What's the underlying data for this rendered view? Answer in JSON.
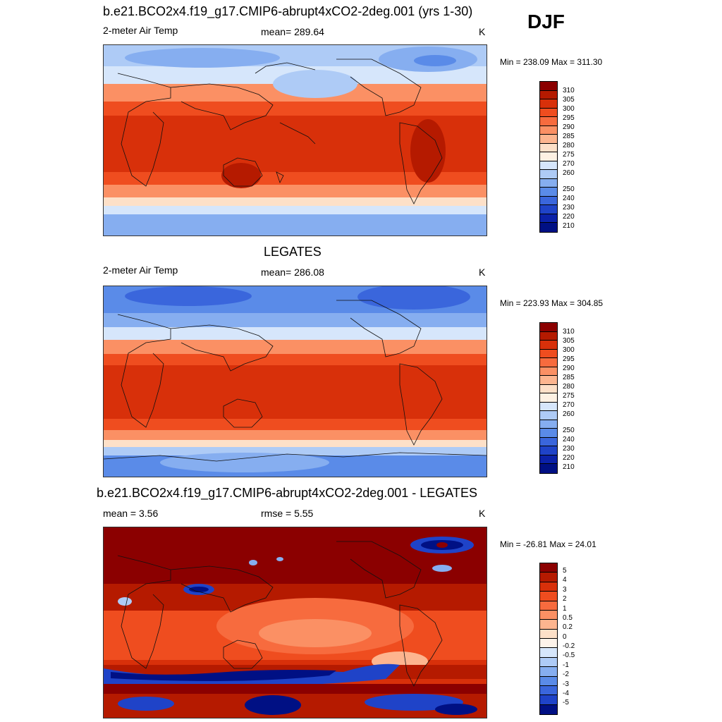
{
  "season": "DJF",
  "panel1": {
    "title": "b.e21.BCO2x4.f19_g17.CMIP6-abrupt4xCO2-2deg.001 (yrs 1-30)",
    "left_label": "2-meter Air Temp",
    "center_label": "mean= 289.64",
    "units": "K",
    "minmax": "Min = 238.09 Max = 311.30"
  },
  "panel2": {
    "title": "LEGATES",
    "left_label": "2-meter Air Temp",
    "center_label": "mean= 286.08",
    "units": "K",
    "minmax": "Min = 223.93 Max = 304.85"
  },
  "panel3": {
    "title": "b.e21.BCO2x4.f19_g17.CMIP6-abrupt4xCO2-2deg.001 - LEGATES",
    "left_label": "mean =   3.56",
    "center_label": "rmse =   5.55",
    "units": "K",
    "minmax": "Min = -26.81 Max =  24.01"
  },
  "temp_colorbar": {
    "labels": [
      "310",
      "305",
      "300",
      "295",
      "290",
      "285",
      "280",
      "275",
      "270",
      "260",
      "250",
      "240",
      "230",
      "220",
      "210"
    ],
    "colors": [
      "#8b0000",
      "#b51a00",
      "#d8300a",
      "#ef4d1f",
      "#f76b3e",
      "#fb9064",
      "#fdb58f",
      "#fde0c8",
      "#fdf1e3",
      "#d6e6fb",
      "#aecbf6",
      "#86aef0",
      "#5a8be8",
      "#3a66dc",
      "#1f43c8",
      "#0b21a8",
      "#001084"
    ]
  },
  "diff_colorbar": {
    "labels": [
      "5",
      "4",
      "3",
      "2",
      "1",
      "0.5",
      "0.2",
      "0",
      "-0.2",
      "-0.5",
      "-1",
      "-2",
      "-3",
      "-4",
      "-5"
    ],
    "colors": [
      "#8b0000",
      "#b51a00",
      "#d8300a",
      "#ef4d1f",
      "#f76b3e",
      "#fb9064",
      "#fdb58f",
      "#fde0c8",
      "#fdf3ea",
      "#d6e6fb",
      "#aecbf6",
      "#86aef0",
      "#5a8be8",
      "#3a66dc",
      "#1f43c8",
      "#001084"
    ]
  }
}
